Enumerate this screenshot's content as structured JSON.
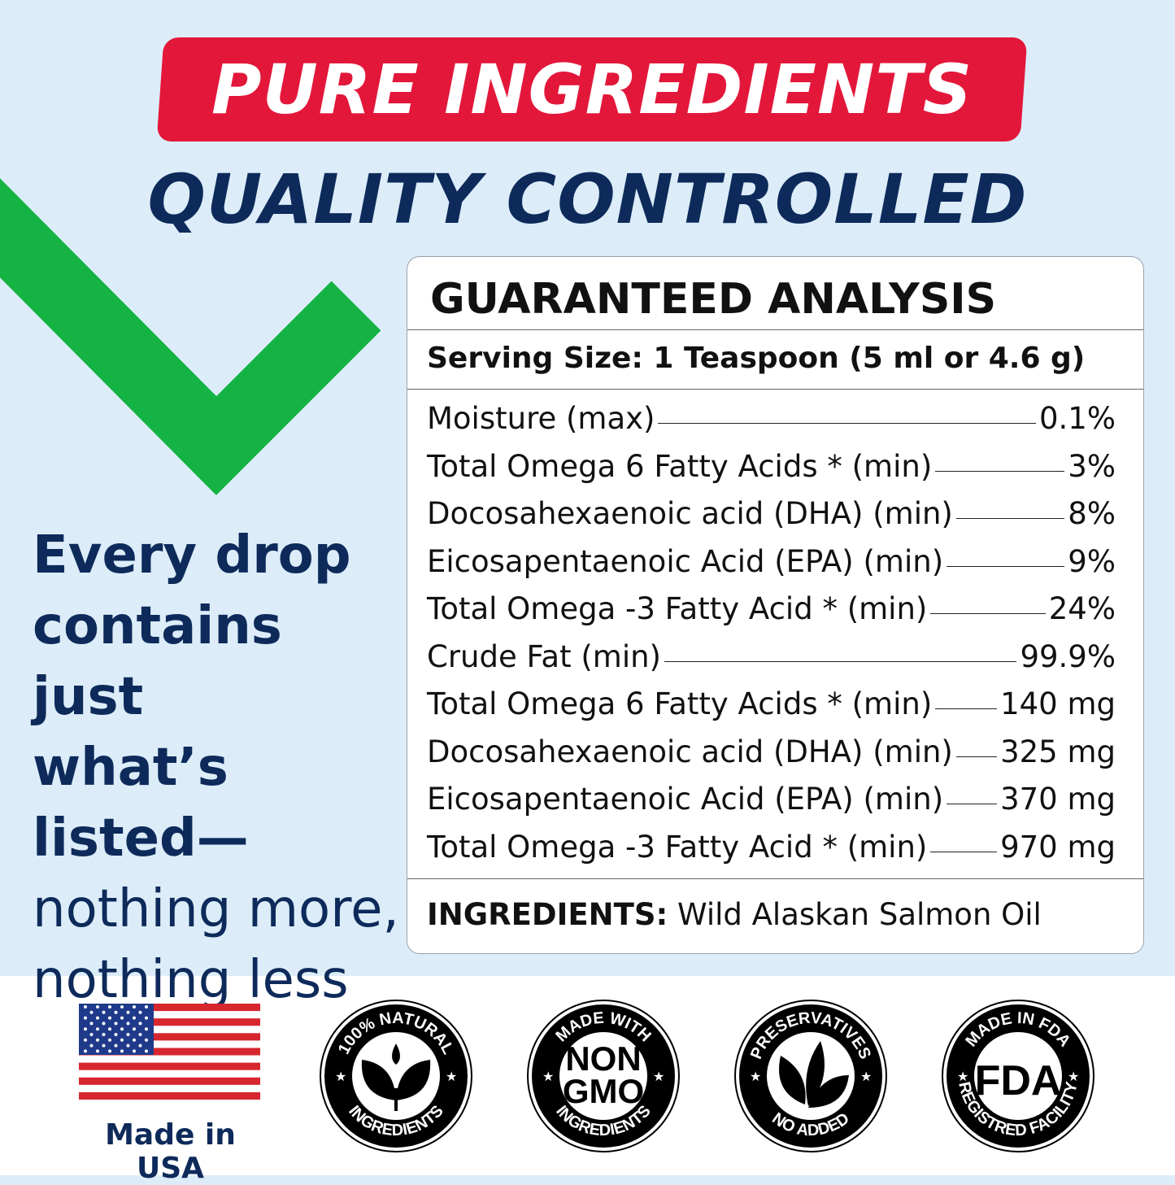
{
  "header": {
    "banner": "PURE INGREDIENTS",
    "subtitle": "QUALITY CONTROLLED"
  },
  "colors": {
    "red": "#e3173a",
    "navy": "#0d2a5a",
    "green": "#14b343",
    "background": "#dcedf9"
  },
  "tagline": {
    "bold_lines": [
      "Every drop",
      "contains just",
      "what’s",
      "listed—"
    ],
    "regular_lines": [
      "nothing more,",
      "nothing less"
    ]
  },
  "analysis": {
    "title": "GUARANTEED ANALYSIS",
    "serving": "Serving Size: 1 Teaspoon (5 ml or 4.6 g)",
    "rows": [
      {
        "label": "Moisture (max)",
        "value": "0.1%"
      },
      {
        "label": "Total Omega 6 Fatty Acids * (min)",
        "value": "3%"
      },
      {
        "label": "Docosahexaenoic acid (DHA) (min)",
        "value": "8%"
      },
      {
        "label": "Eicosapentaenoic Acid (EPA) (min)",
        "value": "9%"
      },
      {
        "label": "Total Omega -3 Fatty Acid * (min)",
        "value": "24%"
      },
      {
        "label": "Crude Fat (min)",
        "value": "99.9%"
      },
      {
        "label": "Total Omega 6 Fatty Acids * (min)",
        "value": "140 mg"
      },
      {
        "label": "Docosahexaenoic acid (DHA) (min)",
        "value": "325 mg"
      },
      {
        "label": "Eicosapentaenoic Acid (EPA) (min)",
        "value": "370 mg"
      },
      {
        "label": "Total Omega -3 Fatty Acid * (min)",
        "value": "970 mg"
      }
    ],
    "ingredients_label": "INGREDIENTS:",
    "ingredients": "Wild Alaskan Salmon Oil"
  },
  "footer": {
    "made_in": "Made in USA",
    "badges": [
      {
        "top": "100% NATURAL",
        "bottom": "INGREDIENTS",
        "icon": "leaf-drop-icon"
      },
      {
        "top": "MADE WITH",
        "bottom": "INGREDIENTS",
        "center": [
          "NON",
          "GMO"
        ],
        "icon": "text"
      },
      {
        "top": "PRESERVATIVES",
        "bottom": "NO ADDED",
        "icon": "leaves-icon"
      },
      {
        "top": "MADE IN FDA",
        "bottom": "REGISTRED FACILITY",
        "center": [
          "FDA"
        ],
        "icon": "text"
      }
    ]
  }
}
